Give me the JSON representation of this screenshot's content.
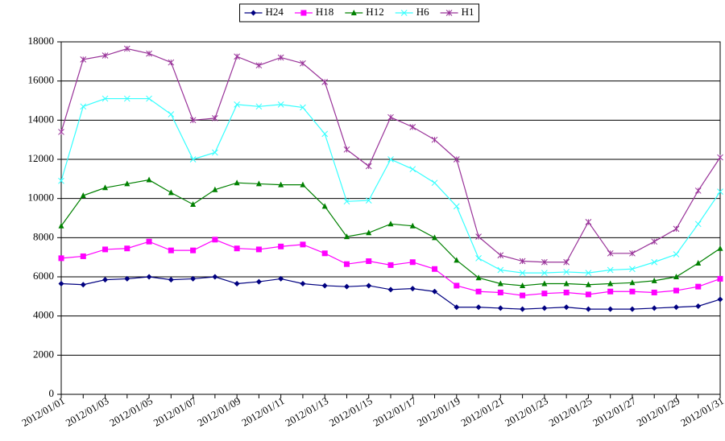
{
  "chart_data": {
    "type": "line",
    "categories": [
      "2012/01/01",
      null,
      "2012/01/03",
      null,
      "2012/01/05",
      null,
      "2012/01/07",
      null,
      "2012/01/09",
      null,
      "2012/01/11",
      null,
      "2012/01/13",
      null,
      "2012/01/15",
      null,
      "2012/01/17",
      null,
      "2012/01/19",
      null,
      "2012/01/21",
      null,
      "2012/01/23",
      null,
      "2012/01/25",
      null,
      "2012/01/27",
      null,
      "2012/01/29",
      null,
      "2012/01/31"
    ],
    "ylim": [
      0,
      18000
    ],
    "yticks": [
      0,
      2000,
      4000,
      6000,
      8000,
      10000,
      12000,
      14000,
      16000,
      18000
    ],
    "grid": true,
    "legend": "top",
    "series": [
      {
        "name": "H24",
        "color": "#000080",
        "marker": "diamond",
        "values": [
          5650,
          5600,
          5850,
          5900,
          6000,
          5850,
          5900,
          6000,
          5650,
          5750,
          5900,
          5650,
          5550,
          5500,
          5550,
          5350,
          5400,
          5250,
          4450,
          4450,
          4400,
          4350,
          4400,
          4450,
          4350,
          4350,
          4350,
          4400,
          4450,
          4500,
          4850
        ]
      },
      {
        "name": "H18",
        "color": "#ff00ff",
        "marker": "square",
        "values": [
          6950,
          7050,
          7400,
          7450,
          7800,
          7350,
          7350,
          7900,
          7450,
          7400,
          7550,
          7650,
          7200,
          6650,
          6800,
          6600,
          6750,
          6400,
          5550,
          5250,
          5200,
          5050,
          5150,
          5200,
          5100,
          5250,
          5250,
          5200,
          5300,
          5500,
          5900
        ]
      },
      {
        "name": "H12",
        "color": "#008000",
        "marker": "triangle",
        "values": [
          8600,
          10150,
          10550,
          10750,
          10950,
          10300,
          9700,
          10450,
          10800,
          10750,
          10700,
          10700,
          9600,
          8050,
          8250,
          8700,
          8600,
          8000,
          6850,
          5950,
          5650,
          5550,
          5650,
          5650,
          5600,
          5650,
          5700,
          5800,
          6000,
          6700,
          7450
        ]
      },
      {
        "name": "H6",
        "color": "#33ffff",
        "marker": "x",
        "values": [
          10900,
          14700,
          15100,
          15100,
          15100,
          14300,
          12000,
          12350,
          14800,
          14700,
          14800,
          14650,
          13300,
          9850,
          9900,
          12000,
          11500,
          10800,
          9600,
          6950,
          6350,
          6200,
          6200,
          6250,
          6200,
          6350,
          6400,
          6750,
          7150,
          8700,
          10350
        ]
      },
      {
        "name": "H1",
        "color": "#993399",
        "marker": "star",
        "values": [
          13400,
          17100,
          17300,
          17650,
          17400,
          16950,
          14000,
          14100,
          17250,
          16800,
          17200,
          16900,
          15950,
          12500,
          11650,
          14150,
          13650,
          13000,
          12000,
          8050,
          7100,
          6800,
          6750,
          6750,
          8800,
          7200,
          7200,
          7800,
          8450,
          10400,
          12100
        ]
      }
    ]
  }
}
